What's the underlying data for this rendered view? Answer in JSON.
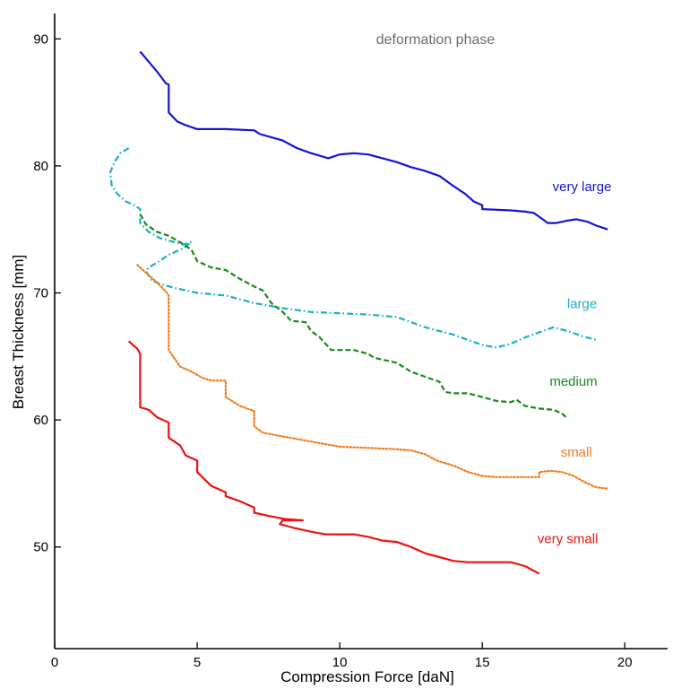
{
  "chart_data": {
    "type": "line",
    "annotation": "deformation phase",
    "xlabel": "Compression Force [daN]",
    "ylabel": "Breast Thickness [mm]",
    "xlim": [
      0,
      21.5
    ],
    "ylim": [
      42,
      92
    ],
    "xticks": [
      0,
      5,
      10,
      15,
      20
    ],
    "yticks": [
      50,
      60,
      70,
      80,
      90
    ],
    "grid": false,
    "series": [
      {
        "name": "very large",
        "color": "#1414d2",
        "style": "solid",
        "label_at": [
          18.5,
          78
        ],
        "points": [
          [
            3.0,
            89.0
          ],
          [
            3.3,
            88.2
          ],
          [
            3.6,
            87.4
          ],
          [
            3.9,
            86.5
          ],
          [
            4.0,
            86.4
          ],
          [
            4.0,
            84.2
          ],
          [
            4.3,
            83.5
          ],
          [
            4.6,
            83.2
          ],
          [
            5.0,
            82.9
          ],
          [
            6.0,
            82.9
          ],
          [
            7.0,
            82.8
          ],
          [
            7.2,
            82.5
          ],
          [
            8.0,
            82.0
          ],
          [
            8.5,
            81.4
          ],
          [
            9.0,
            81.0
          ],
          [
            9.3,
            80.8
          ],
          [
            9.6,
            80.6
          ],
          [
            10.0,
            80.9
          ],
          [
            10.5,
            81.0
          ],
          [
            11.0,
            80.9
          ],
          [
            12.0,
            80.3
          ],
          [
            12.5,
            79.9
          ],
          [
            13.0,
            79.6
          ],
          [
            13.5,
            79.2
          ],
          [
            14.0,
            78.4
          ],
          [
            14.4,
            77.8
          ],
          [
            14.7,
            77.2
          ],
          [
            15.0,
            76.9
          ],
          [
            15.0,
            76.6
          ],
          [
            16.0,
            76.5
          ],
          [
            16.5,
            76.4
          ],
          [
            16.8,
            76.3
          ],
          [
            17.0,
            76.0
          ],
          [
            17.3,
            75.5
          ],
          [
            17.6,
            75.5
          ],
          [
            18.0,
            75.7
          ],
          [
            18.3,
            75.8
          ],
          [
            18.7,
            75.6
          ],
          [
            19.0,
            75.3
          ],
          [
            19.4,
            75.0
          ]
        ]
      },
      {
        "name": "large",
        "color": "#1ab0c4",
        "style": "dashdot",
        "label_at": [
          18.5,
          68.8
        ],
        "points": [
          [
            2.6,
            81.4
          ],
          [
            2.3,
            81.0
          ],
          [
            2.1,
            80.3
          ],
          [
            1.95,
            79.5
          ],
          [
            2.0,
            78.5
          ],
          [
            2.2,
            77.8
          ],
          [
            2.5,
            77.2
          ],
          [
            2.8,
            76.9
          ],
          [
            3.0,
            76.6
          ],
          [
            3.0,
            75.5
          ],
          [
            3.3,
            74.8
          ],
          [
            3.7,
            74.3
          ],
          [
            4.2,
            74.0
          ],
          [
            4.5,
            73.8
          ],
          [
            4.8,
            74.0
          ],
          [
            4.5,
            73.5
          ],
          [
            4.0,
            73.0
          ],
          [
            3.6,
            72.4
          ],
          [
            3.3,
            72.0
          ],
          [
            3.2,
            71.7
          ],
          [
            3.4,
            71.0
          ],
          [
            3.7,
            70.7
          ],
          [
            4.2,
            70.4
          ],
          [
            5.0,
            70.0
          ],
          [
            6.0,
            69.8
          ],
          [
            7.0,
            69.2
          ],
          [
            8.0,
            68.8
          ],
          [
            9.0,
            68.5
          ],
          [
            10.0,
            68.4
          ],
          [
            11.0,
            68.3
          ],
          [
            12.0,
            68.1
          ],
          [
            12.5,
            67.7
          ],
          [
            13.0,
            67.3
          ],
          [
            14.0,
            66.7
          ],
          [
            14.5,
            66.3
          ],
          [
            15.0,
            65.9
          ],
          [
            15.5,
            65.7
          ],
          [
            16.0,
            66.0
          ],
          [
            16.5,
            66.5
          ],
          [
            17.0,
            66.9
          ],
          [
            17.5,
            67.3
          ],
          [
            18.0,
            67.0
          ],
          [
            18.5,
            66.6
          ],
          [
            19.0,
            66.3
          ]
        ]
      },
      {
        "name": "medium",
        "color": "#1a8a1a",
        "style": "dashed",
        "label_at": [
          18.2,
          62.7
        ],
        "points": [
          [
            3.0,
            76.2
          ],
          [
            3.2,
            75.4
          ],
          [
            3.6,
            74.8
          ],
          [
            4.0,
            74.5
          ],
          [
            4.4,
            74.0
          ],
          [
            4.8,
            73.4
          ],
          [
            5.0,
            72.5
          ],
          [
            5.5,
            72.0
          ],
          [
            6.0,
            71.8
          ],
          [
            6.5,
            71.1
          ],
          [
            7.0,
            70.5
          ],
          [
            7.3,
            70.2
          ],
          [
            7.6,
            69.2
          ],
          [
            8.0,
            68.5
          ],
          [
            8.3,
            67.8
          ],
          [
            8.8,
            67.7
          ],
          [
            9.0,
            67.0
          ],
          [
            9.3,
            66.5
          ],
          [
            9.7,
            65.5
          ],
          [
            10.0,
            65.5
          ],
          [
            10.5,
            65.5
          ],
          [
            11.0,
            65.2
          ],
          [
            11.2,
            64.9
          ],
          [
            12.0,
            64.5
          ],
          [
            12.5,
            63.8
          ],
          [
            13.0,
            63.4
          ],
          [
            13.5,
            63.0
          ],
          [
            13.7,
            62.2
          ],
          [
            14.0,
            62.1
          ],
          [
            14.5,
            62.1
          ],
          [
            15.0,
            61.8
          ],
          [
            15.5,
            61.5
          ],
          [
            16.0,
            61.4
          ],
          [
            16.2,
            61.6
          ],
          [
            16.5,
            61.1
          ],
          [
            17.0,
            60.9
          ],
          [
            17.5,
            60.8
          ],
          [
            17.8,
            60.5
          ],
          [
            18.0,
            60.1
          ]
        ]
      },
      {
        "name": "small",
        "color": "#f07c1e",
        "style": "dotted",
        "label_at": [
          18.3,
          57.1
        ],
        "points": [
          [
            2.9,
            72.2
          ],
          [
            3.2,
            71.6
          ],
          [
            3.6,
            70.8
          ],
          [
            3.9,
            70.1
          ],
          [
            4.0,
            69.8
          ],
          [
            4.0,
            65.5
          ],
          [
            4.4,
            64.2
          ],
          [
            4.8,
            63.8
          ],
          [
            5.2,
            63.3
          ],
          [
            5.5,
            63.1
          ],
          [
            6.0,
            63.1
          ],
          [
            6.0,
            61.8
          ],
          [
            6.5,
            61.1
          ],
          [
            7.0,
            60.7
          ],
          [
            7.0,
            59.5
          ],
          [
            7.3,
            59.0
          ],
          [
            8.0,
            58.7
          ],
          [
            9.0,
            58.3
          ],
          [
            10.0,
            57.9
          ],
          [
            11.0,
            57.8
          ],
          [
            12.0,
            57.7
          ],
          [
            12.5,
            57.6
          ],
          [
            13.0,
            57.3
          ],
          [
            13.4,
            56.8
          ],
          [
            14.0,
            56.4
          ],
          [
            14.5,
            55.9
          ],
          [
            15.0,
            55.6
          ],
          [
            15.5,
            55.5
          ],
          [
            17.0,
            55.5
          ],
          [
            17.0,
            55.9
          ],
          [
            17.4,
            56.0
          ],
          [
            17.8,
            55.9
          ],
          [
            18.2,
            55.6
          ],
          [
            18.6,
            55.1
          ],
          [
            19.0,
            54.7
          ],
          [
            19.4,
            54.6
          ]
        ]
      },
      {
        "name": "very small",
        "color": "#ee1111",
        "style": "solid",
        "label_at": [
          18.0,
          50.3
        ],
        "points": [
          [
            2.6,
            66.2
          ],
          [
            2.9,
            65.6
          ],
          [
            3.0,
            65.2
          ],
          [
            3.0,
            61.0
          ],
          [
            3.3,
            60.8
          ],
          [
            3.6,
            60.2
          ],
          [
            4.0,
            59.8
          ],
          [
            4.0,
            58.6
          ],
          [
            4.4,
            58.0
          ],
          [
            4.6,
            57.2
          ],
          [
            5.0,
            56.8
          ],
          [
            5.0,
            55.9
          ],
          [
            5.5,
            54.8
          ],
          [
            6.0,
            54.3
          ],
          [
            6.0,
            54.0
          ],
          [
            6.5,
            53.6
          ],
          [
            7.0,
            53.1
          ],
          [
            7.0,
            52.7
          ],
          [
            7.6,
            52.4
          ],
          [
            8.1,
            52.2
          ],
          [
            8.7,
            52.1
          ],
          [
            8.0,
            52.1
          ],
          [
            7.9,
            51.8
          ],
          [
            8.4,
            51.5
          ],
          [
            9.0,
            51.2
          ],
          [
            9.5,
            51.0
          ],
          [
            10.0,
            51.0
          ],
          [
            10.5,
            51.0
          ],
          [
            11.0,
            50.8
          ],
          [
            11.5,
            50.5
          ],
          [
            12.0,
            50.4
          ],
          [
            12.5,
            50.0
          ],
          [
            13.0,
            49.5
          ],
          [
            13.5,
            49.2
          ],
          [
            14.0,
            48.9
          ],
          [
            14.5,
            48.8
          ],
          [
            16.0,
            48.8
          ],
          [
            16.5,
            48.5
          ],
          [
            17.0,
            47.9
          ]
        ]
      }
    ]
  }
}
